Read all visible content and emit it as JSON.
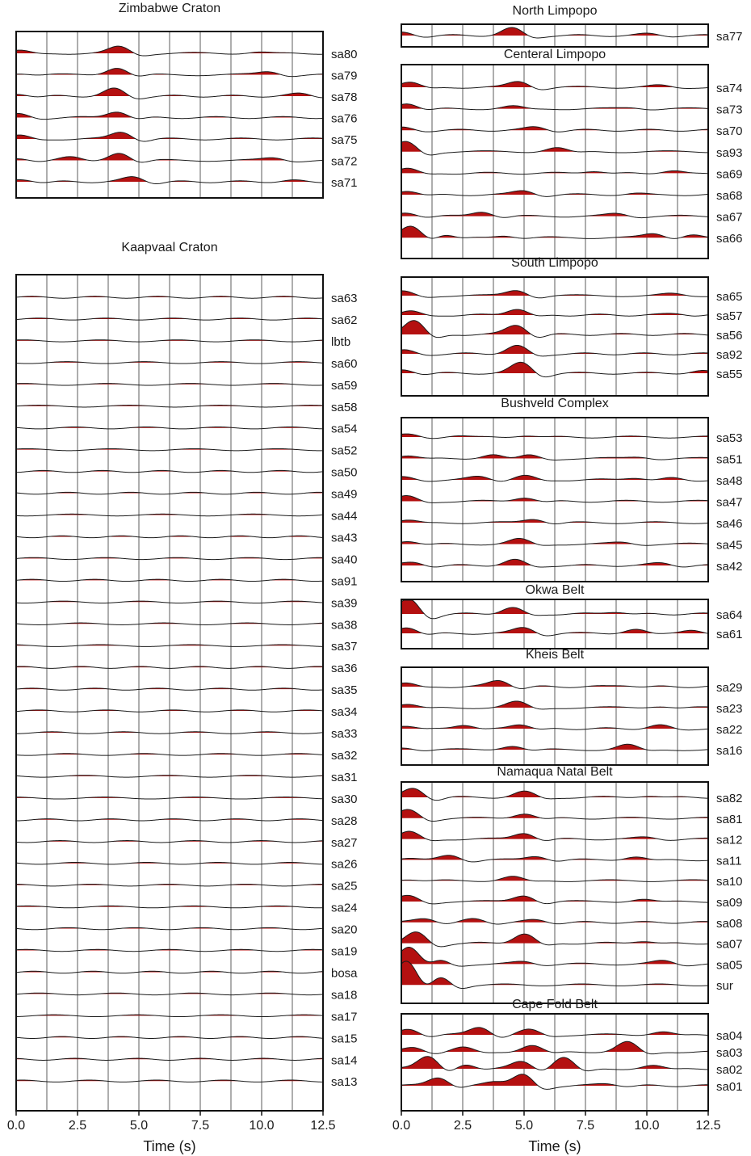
{
  "chart_data": {
    "type": "line",
    "fill_color": "#b41010",
    "line_color": "#1a1a1a",
    "xlim": [
      0,
      12.5
    ],
    "xticks": [
      "0.0",
      "2.5",
      "5.0",
      "7.5",
      "10.0",
      "12.5"
    ],
    "xlabel": "Time (s)",
    "gridlines": true,
    "panels": [
      {
        "title": "Zimbabwe Craton",
        "stations": [
          "sa80",
          "sa79",
          "sa78",
          "sa76",
          "sa75",
          "sa72",
          "sa71"
        ]
      },
      {
        "title": "Kaapvaal Craton",
        "stations": [
          "sa63",
          "sa62",
          "lbtb",
          "sa60",
          "sa59",
          "sa58",
          "sa54",
          "sa52",
          "sa50",
          "sa49",
          "sa44",
          "sa43",
          "sa40",
          "sa91",
          "sa39",
          "sa38",
          "sa37",
          "sa36",
          "sa35",
          "sa34",
          "sa33",
          "sa32",
          "sa31",
          "sa30",
          "sa28",
          "sa27",
          "sa26",
          "sa25",
          "sa24",
          "sa20",
          "sa19",
          "bosa",
          "sa18",
          "sa17",
          "sa15",
          "sa14",
          "sa13"
        ]
      },
      {
        "title": "North Limpopo",
        "stations": [
          "sa77"
        ]
      },
      {
        "title": "Centeral Limpopo",
        "stations": [
          "sa74",
          "sa73",
          "sa70",
          "sa93",
          "sa69",
          "sa68",
          "sa67",
          "sa66"
        ]
      },
      {
        "title": "South Limpopo",
        "stations": [
          "sa65",
          "sa57",
          "sa56",
          "sa92",
          "sa55"
        ]
      },
      {
        "title": "Bushveld Complex",
        "stations": [
          "sa53",
          "sa51",
          "sa48",
          "sa47",
          "sa46",
          "sa45",
          "sa42"
        ]
      },
      {
        "title": "Okwa Belt",
        "stations": [
          "sa64",
          "sa61"
        ]
      },
      {
        "title": "Kheis Belt",
        "stations": [
          "sa29",
          "sa23",
          "sa22",
          "sa16"
        ]
      },
      {
        "title": "Namaqua Natal Belt",
        "stations": [
          "sa82",
          "sa81",
          "sa12",
          "sa11",
          "sa10",
          "sa09",
          "sa08",
          "sa07",
          "sa05",
          "sur"
        ]
      },
      {
        "title": "Cape Fold Belt",
        "stations": [
          "sa04",
          "sa03",
          "sa02",
          "sa01"
        ]
      }
    ],
    "peaks": {
      "sa80": [
        [
          0.1,
          0.3
        ],
        [
          4.2,
          0.8
        ],
        [
          9.8,
          0.15
        ]
      ],
      "sa79": [
        [
          0.1,
          0.2
        ],
        [
          4.1,
          0.9
        ],
        [
          10.3,
          0.4
        ]
      ],
      "sa78": [
        [
          0.1,
          0.3
        ],
        [
          4.0,
          0.9
        ],
        [
          11.6,
          0.3
        ]
      ],
      "sa76": [
        [
          0.1,
          0.4
        ],
        [
          4.1,
          0.8
        ]
      ],
      "sa75": [
        [
          0.1,
          0.4
        ],
        [
          4.3,
          0.9
        ]
      ],
      "sa72": [
        [
          0.1,
          0.3
        ],
        [
          2.2,
          0.35
        ],
        [
          4.2,
          1.0
        ],
        [
          10.5,
          0.3
        ]
      ],
      "sa71": [
        [
          0.3,
          0.3
        ],
        [
          4.8,
          0.6
        ],
        [
          11.2,
          0.15
        ]
      ],
      "sa77": [
        [
          0.1,
          0.4
        ],
        [
          4.5,
          0.9
        ],
        [
          10.1,
          0.2
        ]
      ],
      "sa74": [
        [
          0.3,
          0.6
        ],
        [
          4.8,
          0.7
        ],
        [
          10.5,
          0.2
        ]
      ],
      "sa73": [
        [
          0.2,
          0.7
        ],
        [
          4.5,
          0.3
        ],
        [
          9.4,
          0.15
        ]
      ],
      "sa70": [
        [
          0.1,
          0.3
        ],
        [
          5.5,
          0.4
        ]
      ],
      "sa93": [
        [
          0.2,
          1.2
        ],
        [
          6.3,
          0.5
        ]
      ],
      "sa69": [
        [
          0.2,
          0.6
        ],
        [
          7.8,
          0.3
        ],
        [
          11.0,
          0.3
        ]
      ],
      "sa68": [
        [
          0.2,
          0.5
        ],
        [
          5.0,
          0.5
        ],
        [
          9.5,
          0.15
        ]
      ],
      "sa67": [
        [
          0.2,
          0.5
        ],
        [
          3.3,
          0.6
        ],
        [
          8.8,
          0.3
        ]
      ],
      "sa66": [
        [
          0.4,
          1.5
        ],
        [
          1.6,
          0.5
        ],
        [
          4.2,
          0.3
        ],
        [
          10.3,
          0.5
        ],
        [
          11.8,
          0.4
        ]
      ],
      "sa65": [
        [
          0.1,
          0.5
        ],
        [
          4.7,
          0.7
        ],
        [
          11.0,
          0.2
        ]
      ],
      "sa57": [
        [
          0.3,
          0.5
        ],
        [
          4.7,
          0.8
        ],
        [
          11.2,
          0.2
        ]
      ],
      "sa56": [
        [
          0.5,
          1.8
        ],
        [
          4.7,
          1.2
        ]
      ],
      "sa92": [
        [
          0.1,
          0.4
        ],
        [
          4.7,
          1.0
        ]
      ],
      "sa55": [
        [
          0.1,
          0.5
        ],
        [
          4.9,
          1.3
        ],
        [
          12.2,
          0.3
        ]
      ],
      "sa53": [
        [
          0.3,
          0.3
        ],
        [
          2.2,
          0.15
        ],
        [
          5.0,
          0.2
        ]
      ],
      "sa51": [
        [
          0.2,
          0.3
        ],
        [
          3.7,
          0.5
        ],
        [
          5.2,
          0.4
        ],
        [
          9.7,
          0.2
        ]
      ],
      "sa48": [
        [
          0.1,
          0.3
        ],
        [
          3.2,
          0.4
        ],
        [
          5.0,
          0.5
        ],
        [
          9.5,
          0.3
        ],
        [
          11.0,
          0.2
        ]
      ],
      "sa47": [
        [
          0.2,
          0.6
        ],
        [
          5.0,
          0.5
        ]
      ],
      "sa46": [
        [
          0.2,
          0.3
        ],
        [
          5.4,
          0.5
        ]
      ],
      "sa45": [
        [
          0.2,
          0.4
        ],
        [
          4.8,
          0.6
        ],
        [
          9.0,
          0.2
        ]
      ],
      "sa42": [
        [
          0.5,
          0.4
        ],
        [
          4.6,
          0.7
        ],
        [
          10.6,
          0.3
        ]
      ],
      "sa64": [
        [
          0.3,
          1.8
        ],
        [
          4.5,
          0.8
        ],
        [
          8.7,
          0.3
        ]
      ],
      "sa61": [
        [
          0.2,
          0.8
        ],
        [
          5.0,
          0.7
        ],
        [
          9.5,
          0.5
        ],
        [
          11.8,
          0.5
        ]
      ],
      "sa29": [
        [
          0.1,
          0.5
        ],
        [
          4.0,
          0.8
        ],
        [
          9.1,
          0.2
        ]
      ],
      "sa23": [
        [
          0.2,
          0.4
        ],
        [
          4.7,
          0.7
        ],
        [
          10.5,
          0.2
        ]
      ],
      "sa22": [
        [
          0.1,
          0.4
        ],
        [
          2.5,
          0.5
        ],
        [
          4.8,
          0.6
        ],
        [
          10.5,
          0.4
        ]
      ],
      "sa16": [
        [
          0.1,
          0.3
        ],
        [
          4.5,
          0.5
        ],
        [
          9.2,
          0.6
        ]
      ],
      "sa82": [
        [
          0.5,
          1.2
        ],
        [
          5.0,
          0.7
        ],
        [
          10.0,
          0.2
        ]
      ],
      "sa81": [
        [
          0.3,
          1.0
        ],
        [
          5.0,
          0.6
        ]
      ],
      "sa12": [
        [
          0.3,
          0.9
        ],
        [
          5.0,
          0.8
        ],
        [
          10.0,
          0.2
        ]
      ],
      "sa11": [
        [
          0.2,
          0.2
        ],
        [
          2.0,
          0.6
        ],
        [
          5.5,
          0.5
        ],
        [
          9.5,
          0.4
        ]
      ],
      "sa10": [
        [
          0.2,
          0.2
        ],
        [
          4.5,
          0.5
        ]
      ],
      "sa09": [
        [
          0.3,
          0.7
        ],
        [
          5.0,
          0.8
        ],
        [
          9.8,
          0.3
        ]
      ],
      "sa08": [
        [
          1.0,
          0.5
        ],
        [
          3.0,
          0.4
        ],
        [
          5.5,
          0.3
        ]
      ],
      "sa07": [
        [
          0.6,
          1.3
        ],
        [
          5.0,
          1.2
        ],
        [
          9.8,
          0.3
        ]
      ],
      "sa05": [
        [
          0.3,
          2.2
        ],
        [
          1.4,
          0.8
        ],
        [
          5.0,
          0.3
        ],
        [
          10.7,
          0.4
        ]
      ],
      "sur": [
        [
          0.2,
          3.0
        ],
        [
          1.5,
          1.2
        ]
      ],
      "sa04": [
        [
          0.3,
          0.8
        ],
        [
          3.2,
          1.0
        ],
        [
          5.2,
          0.6
        ],
        [
          10.6,
          0.4
        ]
      ],
      "sa03": [
        [
          0.5,
          0.6
        ],
        [
          2.5,
          0.5
        ],
        [
          5.3,
          0.8
        ],
        [
          9.2,
          1.2
        ]
      ],
      "sa02": [
        [
          1.1,
          1.6
        ],
        [
          2.5,
          0.6
        ],
        [
          4.9,
          1.0
        ],
        [
          6.6,
          1.4
        ],
        [
          10.2,
          0.4
        ]
      ],
      "sa01": [
        [
          1.5,
          1.1
        ],
        [
          3.8,
          0.6
        ],
        [
          4.9,
          1.5
        ],
        [
          8.4,
          0.3
        ]
      ]
    }
  }
}
